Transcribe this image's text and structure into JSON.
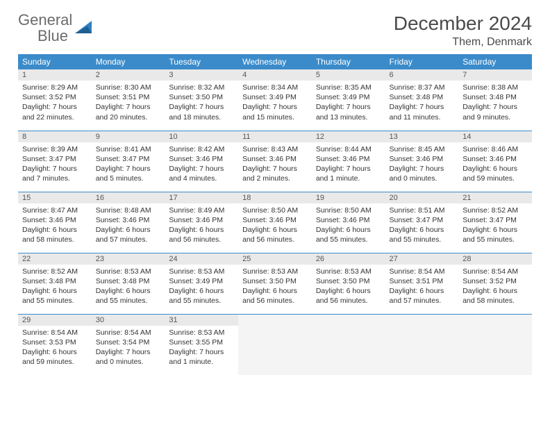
{
  "logo": {
    "text1": "General",
    "text2": "Blue"
  },
  "title": "December 2024",
  "location": "Them, Denmark",
  "colors": {
    "header_bg": "#3b8bca",
    "header_fg": "#ffffff",
    "daynum_bg": "#e9e9e9",
    "rule": "#3b8bca",
    "logo_gray": "#6b6b6b",
    "logo_blue": "#2f7fc1"
  },
  "dow": [
    "Sunday",
    "Monday",
    "Tuesday",
    "Wednesday",
    "Thursday",
    "Friday",
    "Saturday"
  ],
  "weeks": [
    [
      {
        "n": "1",
        "sunrise": "Sunrise: 8:29 AM",
        "sunset": "Sunset: 3:52 PM",
        "daylight": "Daylight: 7 hours and 22 minutes."
      },
      {
        "n": "2",
        "sunrise": "Sunrise: 8:30 AM",
        "sunset": "Sunset: 3:51 PM",
        "daylight": "Daylight: 7 hours and 20 minutes."
      },
      {
        "n": "3",
        "sunrise": "Sunrise: 8:32 AM",
        "sunset": "Sunset: 3:50 PM",
        "daylight": "Daylight: 7 hours and 18 minutes."
      },
      {
        "n": "4",
        "sunrise": "Sunrise: 8:34 AM",
        "sunset": "Sunset: 3:49 PM",
        "daylight": "Daylight: 7 hours and 15 minutes."
      },
      {
        "n": "5",
        "sunrise": "Sunrise: 8:35 AM",
        "sunset": "Sunset: 3:49 PM",
        "daylight": "Daylight: 7 hours and 13 minutes."
      },
      {
        "n": "6",
        "sunrise": "Sunrise: 8:37 AM",
        "sunset": "Sunset: 3:48 PM",
        "daylight": "Daylight: 7 hours and 11 minutes."
      },
      {
        "n": "7",
        "sunrise": "Sunrise: 8:38 AM",
        "sunset": "Sunset: 3:48 PM",
        "daylight": "Daylight: 7 hours and 9 minutes."
      }
    ],
    [
      {
        "n": "8",
        "sunrise": "Sunrise: 8:39 AM",
        "sunset": "Sunset: 3:47 PM",
        "daylight": "Daylight: 7 hours and 7 minutes."
      },
      {
        "n": "9",
        "sunrise": "Sunrise: 8:41 AM",
        "sunset": "Sunset: 3:47 PM",
        "daylight": "Daylight: 7 hours and 5 minutes."
      },
      {
        "n": "10",
        "sunrise": "Sunrise: 8:42 AM",
        "sunset": "Sunset: 3:46 PM",
        "daylight": "Daylight: 7 hours and 4 minutes."
      },
      {
        "n": "11",
        "sunrise": "Sunrise: 8:43 AM",
        "sunset": "Sunset: 3:46 PM",
        "daylight": "Daylight: 7 hours and 2 minutes."
      },
      {
        "n": "12",
        "sunrise": "Sunrise: 8:44 AM",
        "sunset": "Sunset: 3:46 PM",
        "daylight": "Daylight: 7 hours and 1 minute."
      },
      {
        "n": "13",
        "sunrise": "Sunrise: 8:45 AM",
        "sunset": "Sunset: 3:46 PM",
        "daylight": "Daylight: 7 hours and 0 minutes."
      },
      {
        "n": "14",
        "sunrise": "Sunrise: 8:46 AM",
        "sunset": "Sunset: 3:46 PM",
        "daylight": "Daylight: 6 hours and 59 minutes."
      }
    ],
    [
      {
        "n": "15",
        "sunrise": "Sunrise: 8:47 AM",
        "sunset": "Sunset: 3:46 PM",
        "daylight": "Daylight: 6 hours and 58 minutes."
      },
      {
        "n": "16",
        "sunrise": "Sunrise: 8:48 AM",
        "sunset": "Sunset: 3:46 PM",
        "daylight": "Daylight: 6 hours and 57 minutes."
      },
      {
        "n": "17",
        "sunrise": "Sunrise: 8:49 AM",
        "sunset": "Sunset: 3:46 PM",
        "daylight": "Daylight: 6 hours and 56 minutes."
      },
      {
        "n": "18",
        "sunrise": "Sunrise: 8:50 AM",
        "sunset": "Sunset: 3:46 PM",
        "daylight": "Daylight: 6 hours and 56 minutes."
      },
      {
        "n": "19",
        "sunrise": "Sunrise: 8:50 AM",
        "sunset": "Sunset: 3:46 PM",
        "daylight": "Daylight: 6 hours and 55 minutes."
      },
      {
        "n": "20",
        "sunrise": "Sunrise: 8:51 AM",
        "sunset": "Sunset: 3:47 PM",
        "daylight": "Daylight: 6 hours and 55 minutes."
      },
      {
        "n": "21",
        "sunrise": "Sunrise: 8:52 AM",
        "sunset": "Sunset: 3:47 PM",
        "daylight": "Daylight: 6 hours and 55 minutes."
      }
    ],
    [
      {
        "n": "22",
        "sunrise": "Sunrise: 8:52 AM",
        "sunset": "Sunset: 3:48 PM",
        "daylight": "Daylight: 6 hours and 55 minutes."
      },
      {
        "n": "23",
        "sunrise": "Sunrise: 8:53 AM",
        "sunset": "Sunset: 3:48 PM",
        "daylight": "Daylight: 6 hours and 55 minutes."
      },
      {
        "n": "24",
        "sunrise": "Sunrise: 8:53 AM",
        "sunset": "Sunset: 3:49 PM",
        "daylight": "Daylight: 6 hours and 55 minutes."
      },
      {
        "n": "25",
        "sunrise": "Sunrise: 8:53 AM",
        "sunset": "Sunset: 3:50 PM",
        "daylight": "Daylight: 6 hours and 56 minutes."
      },
      {
        "n": "26",
        "sunrise": "Sunrise: 8:53 AM",
        "sunset": "Sunset: 3:50 PM",
        "daylight": "Daylight: 6 hours and 56 minutes."
      },
      {
        "n": "27",
        "sunrise": "Sunrise: 8:54 AM",
        "sunset": "Sunset: 3:51 PM",
        "daylight": "Daylight: 6 hours and 57 minutes."
      },
      {
        "n": "28",
        "sunrise": "Sunrise: 8:54 AM",
        "sunset": "Sunset: 3:52 PM",
        "daylight": "Daylight: 6 hours and 58 minutes."
      }
    ],
    [
      {
        "n": "29",
        "sunrise": "Sunrise: 8:54 AM",
        "sunset": "Sunset: 3:53 PM",
        "daylight": "Daylight: 6 hours and 59 minutes."
      },
      {
        "n": "30",
        "sunrise": "Sunrise: 8:54 AM",
        "sunset": "Sunset: 3:54 PM",
        "daylight": "Daylight: 7 hours and 0 minutes."
      },
      {
        "n": "31",
        "sunrise": "Sunrise: 8:53 AM",
        "sunset": "Sunset: 3:55 PM",
        "daylight": "Daylight: 7 hours and 1 minute."
      },
      null,
      null,
      null,
      null
    ]
  ]
}
